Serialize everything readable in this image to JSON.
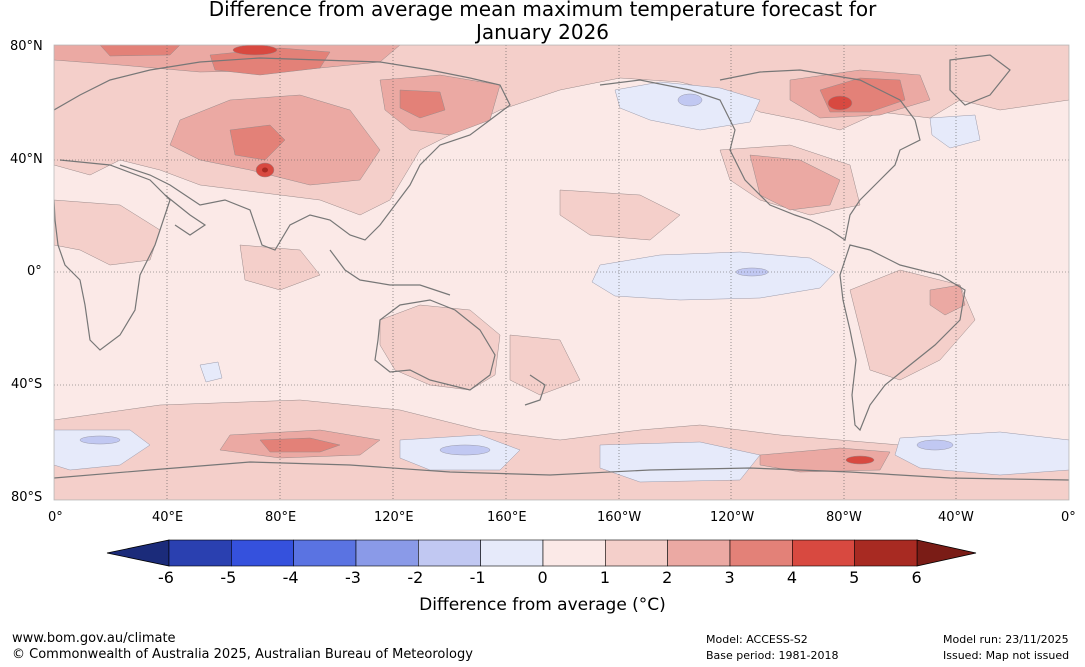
{
  "title": {
    "line1": "Difference from average mean maximum temperature forecast for",
    "line2": "January 2026"
  },
  "lat_labels": [
    "80°N",
    "40°N",
    "0°",
    "40°S",
    "80°S"
  ],
  "lon_labels": [
    "0°",
    "40°E",
    "80°E",
    "120°E",
    "160°E",
    "160°W",
    "120°W",
    "80°W",
    "40°W",
    "0°"
  ],
  "colorbar": {
    "ticks": [
      "-6",
      "-5",
      "-4",
      "-3",
      "-2",
      "-1",
      "0",
      "1",
      "2",
      "3",
      "4",
      "5",
      "6"
    ],
    "colors": [
      "#1b2b7a",
      "#2a40b0",
      "#3551dd",
      "#5a73e2",
      "#8a9ae8",
      "#c1c8f2",
      "#e6eafa",
      "#fbe9e7",
      "#f4cfca",
      "#eba9a3",
      "#e38178",
      "#d84940",
      "#a82a22",
      "#7a1c16"
    ],
    "label": "Difference from average (°C)"
  },
  "footer": {
    "website": "www.bom.gov.au/climate",
    "copyright": "© Commonwealth of Australia 2025, Australian Bureau of Meteorology",
    "model": "Model: ACCESS-S2",
    "base_period": "Base period: 1981-2018",
    "model_run": "Model run: 23/11/2025",
    "issued": "Issued: Map not issued"
  }
}
